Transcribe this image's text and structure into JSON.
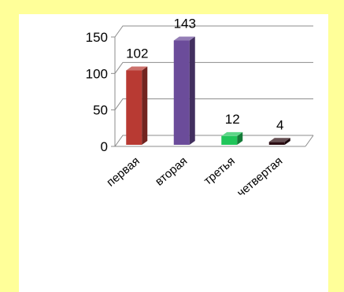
{
  "colors": {
    "page_background": "#ffff99",
    "plot_background": "#ffffff",
    "bar_colors": [
      "#b83a33",
      "#6b4c9a",
      "#20c55a",
      "#2a0c12"
    ]
  },
  "chart_data": {
    "type": "bar",
    "title": "",
    "xlabel": "",
    "ylabel": "",
    "categories": [
      "первая",
      "вторая",
      "третья",
      "четвертая"
    ],
    "values": [
      102,
      143,
      12,
      4
    ],
    "data_labels": [
      "102",
      "143",
      "12",
      "4"
    ],
    "y_ticks": [
      "0",
      "50",
      "100",
      "150"
    ],
    "ylim": [
      0,
      150
    ],
    "grid": true,
    "legend": "none",
    "style": "3d-column"
  }
}
